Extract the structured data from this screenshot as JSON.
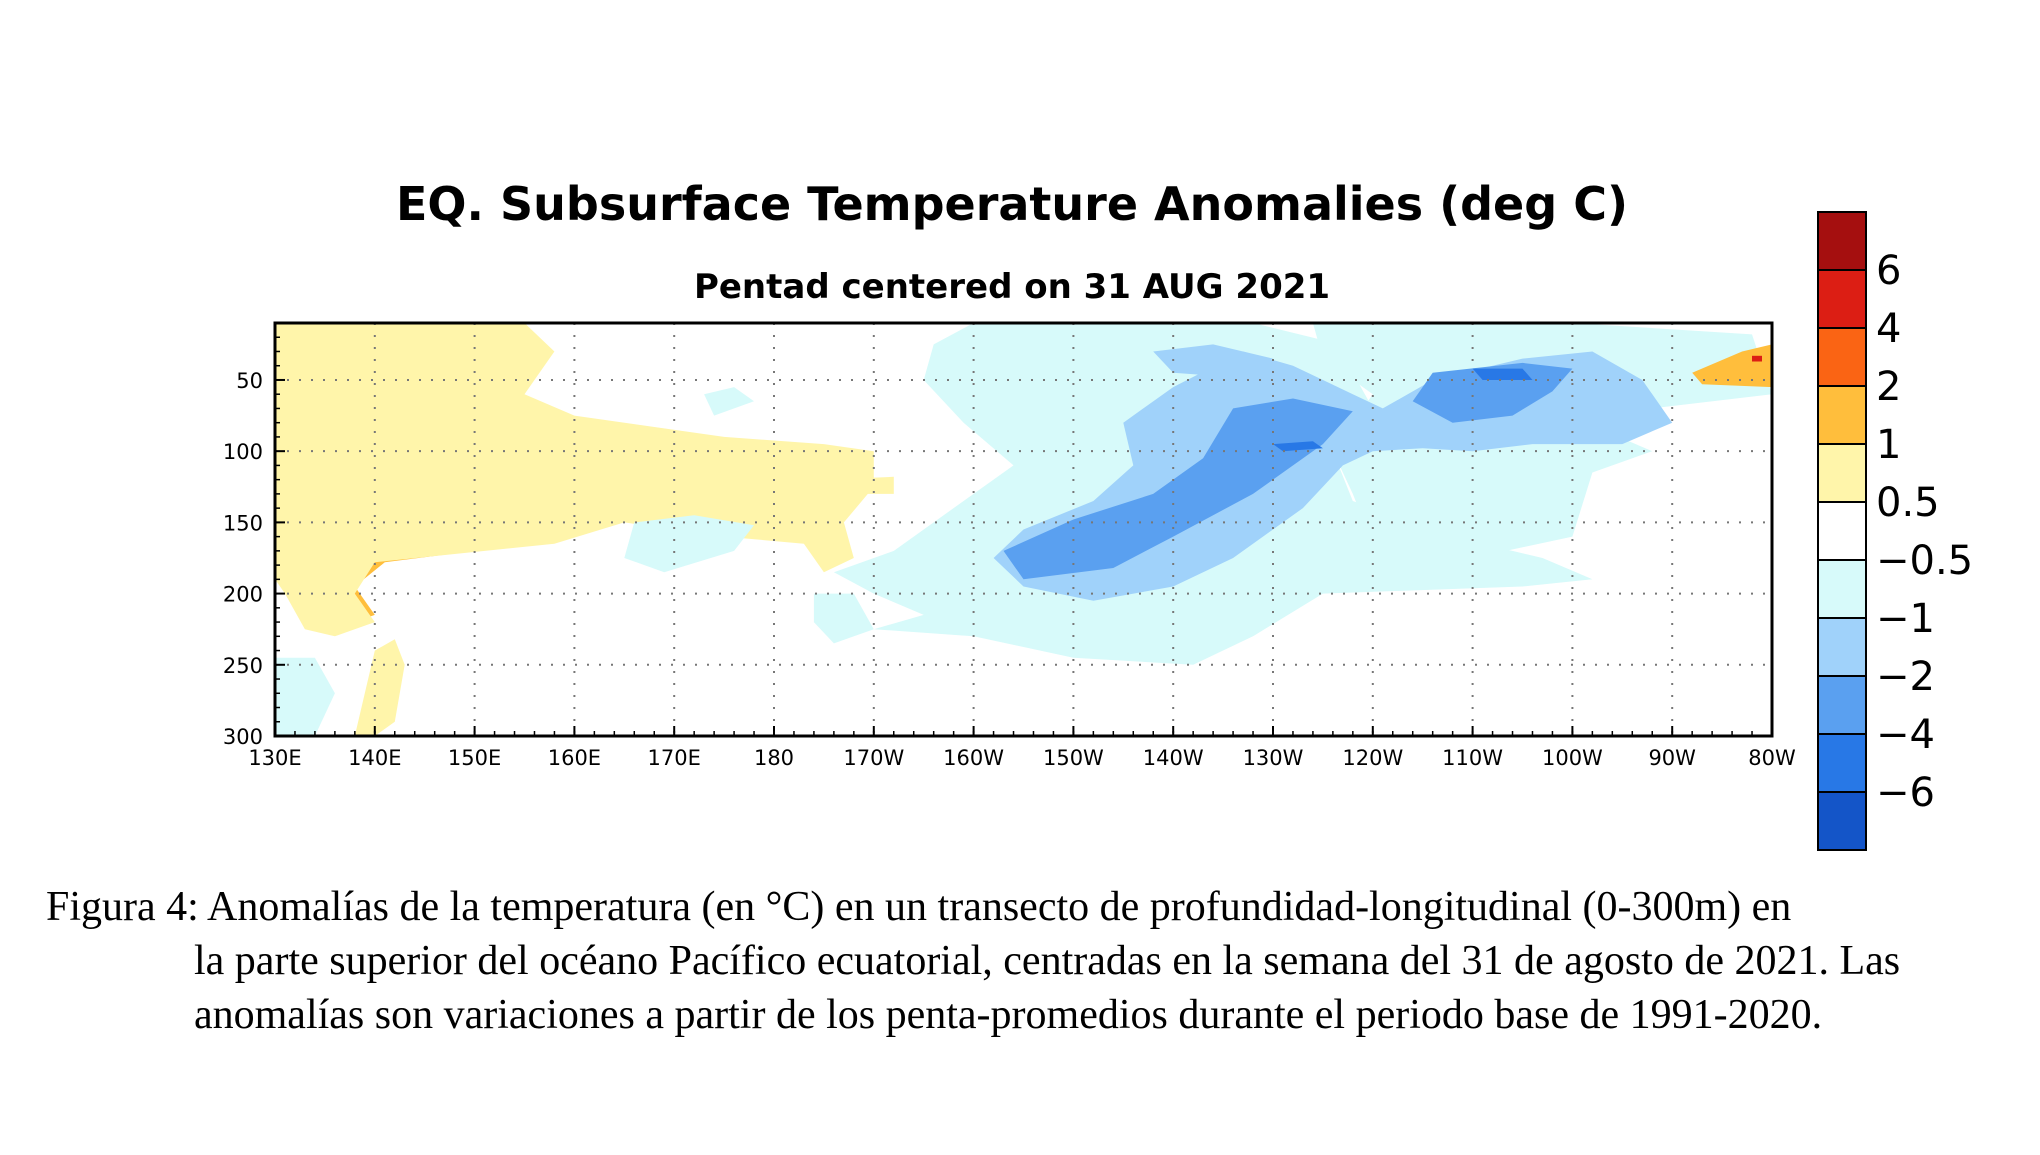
{
  "chart_data": {
    "type": "heatmap",
    "title": "EQ. Subsurface Temperature Anomalies (deg C)",
    "subtitle": "Pentad centered on 31 AUG 2021",
    "x_tick_labels": [
      "130E",
      "140E",
      "150E",
      "160E",
      "170E",
      "180",
      "170W",
      "160W",
      "150W",
      "140W",
      "130W",
      "120W",
      "110W",
      "100W",
      "90W",
      "80W"
    ],
    "x_tick_longitude_east": [
      130,
      140,
      150,
      160,
      170,
      180,
      190,
      200,
      210,
      220,
      230,
      240,
      250,
      260,
      270,
      280
    ],
    "xlim_longitude_east": [
      130,
      280
    ],
    "y_tick_labels": [
      "50",
      "100",
      "150",
      "200",
      "250",
      "300"
    ],
    "y_tick_values": [
      50,
      100,
      150,
      200,
      250,
      300
    ],
    "ylim_depth_m": [
      10,
      300
    ],
    "y_inverted": true,
    "grid": "dotted",
    "colorbar": {
      "placement": "right",
      "labels": [
        "6",
        "4",
        "2",
        "1",
        "0.5",
        "−0.5",
        "−1",
        "−2",
        "−4",
        "−6"
      ],
      "bin_colors": [
        "#a50f0f",
        "#dc1e14",
        "#fa6414",
        "#ffbe3c",
        "#fff5aa",
        "#ffffff",
        "#d7fafa",
        "#a0d2fa",
        "#5aa0f0",
        "#2878e6",
        "#1455c8"
      ]
    },
    "anomaly_regions": [
      {
        "category": "1",
        "points": [
          [
            130,
            10
          ],
          [
            150,
            10
          ],
          [
            153,
            30
          ],
          [
            148,
            60
          ],
          [
            139,
            65
          ],
          [
            134,
            75
          ],
          [
            135,
            95
          ],
          [
            141,
            110
          ],
          [
            147,
            115
          ],
          [
            150,
            140
          ],
          [
            150,
            170
          ],
          [
            141,
            178
          ],
          [
            138,
            195
          ],
          [
            140,
            215
          ],
          [
            136,
            225
          ],
          [
            133,
            215
          ],
          [
            131,
            195
          ],
          [
            130,
            180
          ]
        ]
      },
      {
        "category": "1",
        "points": [
          [
            137,
            90
          ],
          [
            145,
            75
          ],
          [
            160,
            80
          ],
          [
            170,
            95
          ],
          [
            176,
            110
          ],
          [
            178,
            120
          ],
          [
            170,
            135
          ],
          [
            158,
            150
          ],
          [
            145,
            160
          ],
          [
            140,
            140
          ],
          [
            137,
            115
          ]
        ]
      },
      {
        "category": "2",
        "points": [
          [
            133,
            120
          ],
          [
            138,
            115
          ],
          [
            142,
            130
          ],
          [
            143,
            148
          ],
          [
            138,
            150
          ],
          [
            134,
            138
          ]
        ]
      },
      {
        "category": "2",
        "points": [
          [
            130,
            90
          ],
          [
            132,
            92
          ],
          [
            132,
            100
          ],
          [
            130,
            102
          ]
        ]
      },
      {
        "category": "0.5",
        "points": [
          [
            130,
            10
          ],
          [
            155,
            10
          ],
          [
            158,
            30
          ],
          [
            155,
            60
          ],
          [
            160,
            75
          ],
          [
            175,
            90
          ],
          [
            185,
            95
          ],
          [
            190,
            100
          ],
          [
            190,
            125
          ],
          [
            187,
            150
          ],
          [
            188,
            175
          ],
          [
            185,
            185
          ],
          [
            183,
            165
          ],
          [
            175,
            160
          ],
          [
            165,
            150
          ],
          [
            158,
            165
          ],
          [
            140,
            178
          ],
          [
            138,
            200
          ],
          [
            140,
            220
          ],
          [
            136,
            230
          ],
          [
            133,
            225
          ],
          [
            131,
            200
          ],
          [
            130,
            190
          ]
        ]
      },
      {
        "category": "0.5",
        "points": [
          [
            140,
            240
          ],
          [
            142,
            232
          ],
          [
            143,
            250
          ],
          [
            142,
            290
          ],
          [
            140,
            300
          ],
          [
            138,
            300
          ],
          [
            139,
            270
          ]
        ]
      },
      {
        "category": "0.5",
        "points": [
          [
            185,
            120
          ],
          [
            192,
            118
          ],
          [
            192,
            130
          ],
          [
            185,
            130
          ]
        ]
      },
      {
        "category": "-0.5",
        "points": [
          [
            200,
            10
          ],
          [
            228,
            10
          ],
          [
            235,
            22
          ],
          [
            238,
            45
          ],
          [
            240,
            70
          ],
          [
            236,
            100
          ],
          [
            238,
            135
          ],
          [
            248,
            160
          ],
          [
            257,
            175
          ],
          [
            262,
            190
          ],
          [
            255,
            195
          ],
          [
            235,
            200
          ],
          [
            228,
            230
          ],
          [
            222,
            250
          ],
          [
            210,
            245
          ],
          [
            200,
            230
          ],
          [
            190,
            225
          ],
          [
            195,
            215
          ],
          [
            190,
            200
          ],
          [
            186,
            185
          ],
          [
            192,
            170
          ],
          [
            198,
            140
          ],
          [
            204,
            110
          ],
          [
            199,
            80
          ],
          [
            195,
            50
          ],
          [
            196,
            25
          ]
        ]
      },
      {
        "category": "-0.5",
        "points": [
          [
            234,
            10
          ],
          [
            260,
            10
          ],
          [
            278,
            18
          ],
          [
            280,
            60
          ],
          [
            268,
            70
          ],
          [
            263,
            85
          ],
          [
            268,
            100
          ],
          [
            262,
            115
          ],
          [
            260,
            160
          ],
          [
            250,
            175
          ],
          [
            240,
            165
          ],
          [
            238,
            130
          ],
          [
            236,
            100
          ],
          [
            240,
            60
          ],
          [
            235,
            35
          ]
        ]
      },
      {
        "category": "-0.5",
        "points": [
          [
            166,
            150
          ],
          [
            172,
            145
          ],
          [
            178,
            152
          ],
          [
            176,
            170
          ],
          [
            169,
            185
          ],
          [
            165,
            175
          ]
        ]
      },
      {
        "category": "-0.5",
        "points": [
          [
            130,
            245
          ],
          [
            134,
            245
          ],
          [
            136,
            270
          ],
          [
            134,
            300
          ],
          [
            130,
            300
          ]
        ]
      },
      {
        "category": "-0.5",
        "points": [
          [
            184,
            200
          ],
          [
            188,
            200
          ],
          [
            190,
            225
          ],
          [
            186,
            235
          ],
          [
            184,
            220
          ]
        ]
      },
      {
        "category": "-0.5",
        "points": [
          [
            173,
            60
          ],
          [
            176,
            55
          ],
          [
            178,
            65
          ],
          [
            174,
            75
          ]
        ]
      },
      {
        "category": "-1",
        "points": [
          [
            205,
            155
          ],
          [
            212,
            135
          ],
          [
            216,
            110
          ],
          [
            215,
            80
          ],
          [
            220,
            55
          ],
          [
            227,
            30
          ],
          [
            232,
            40
          ],
          [
            238,
            60
          ],
          [
            241,
            70
          ],
          [
            246,
            50
          ],
          [
            255,
            35
          ],
          [
            262,
            30
          ],
          [
            267,
            50
          ],
          [
            270,
            80
          ],
          [
            265,
            95
          ],
          [
            256,
            95
          ],
          [
            250,
            100
          ],
          [
            245,
            98
          ],
          [
            240,
            100
          ],
          [
            237,
            110
          ],
          [
            233,
            140
          ],
          [
            226,
            175
          ],
          [
            220,
            195
          ],
          [
            212,
            205
          ],
          [
            205,
            195
          ],
          [
            202,
            175
          ]
        ]
      },
      {
        "category": "-1",
        "points": [
          [
            218,
            30
          ],
          [
            224,
            25
          ],
          [
            230,
            35
          ],
          [
            226,
            48
          ],
          [
            220,
            45
          ]
        ]
      },
      {
        "category": "-2",
        "points": [
          [
            203,
            170
          ],
          [
            210,
            148
          ],
          [
            218,
            130
          ],
          [
            223,
            105
          ],
          [
            226,
            70
          ],
          [
            232,
            63
          ],
          [
            238,
            72
          ],
          [
            235,
            95
          ],
          [
            228,
            130
          ],
          [
            220,
            160
          ],
          [
            214,
            182
          ],
          [
            205,
            190
          ]
        ]
      },
      {
        "category": "-2",
        "points": [
          [
            246,
            45
          ],
          [
            255,
            38
          ],
          [
            260,
            42
          ],
          [
            258,
            58
          ],
          [
            254,
            75
          ],
          [
            248,
            80
          ],
          [
            244,
            65
          ]
        ]
      },
      {
        "category": "-4",
        "points": [
          [
            230,
            95
          ],
          [
            234,
            93
          ],
          [
            235,
            98
          ],
          [
            231,
            100
          ]
        ]
      },
      {
        "category": "-4",
        "points": [
          [
            250,
            42
          ],
          [
            255,
            42
          ],
          [
            256,
            50
          ],
          [
            251,
            50
          ]
        ]
      },
      {
        "category": "2",
        "points": [
          [
            275,
            45
          ],
          [
            278,
            32
          ],
          [
            280,
            28
          ],
          [
            280,
            52
          ],
          [
            276,
            52
          ]
        ]
      },
      {
        "category": "1",
        "points": [
          [
            272,
            45
          ],
          [
            277,
            30
          ],
          [
            280,
            25
          ],
          [
            280,
            55
          ],
          [
            273,
            53
          ]
        ]
      },
      {
        "category": "4",
        "points": [
          [
            278,
            33
          ],
          [
            279,
            33
          ],
          [
            279,
            37
          ],
          [
            278,
            37
          ]
        ]
      }
    ]
  },
  "caption": {
    "label": "Figura 4: ",
    "text_line1": "Anomalías de la temperatura (en °C) en un transecto de profundidad-longitudinal (0-300m) en",
    "text_rest": "la parte superior del océano Pacífico ecuatorial, centradas en la semana del 31 de agosto de 2021. Las anomalías son variaciones a partir de los penta-promedios durante el periodo base de 1991-2020."
  }
}
